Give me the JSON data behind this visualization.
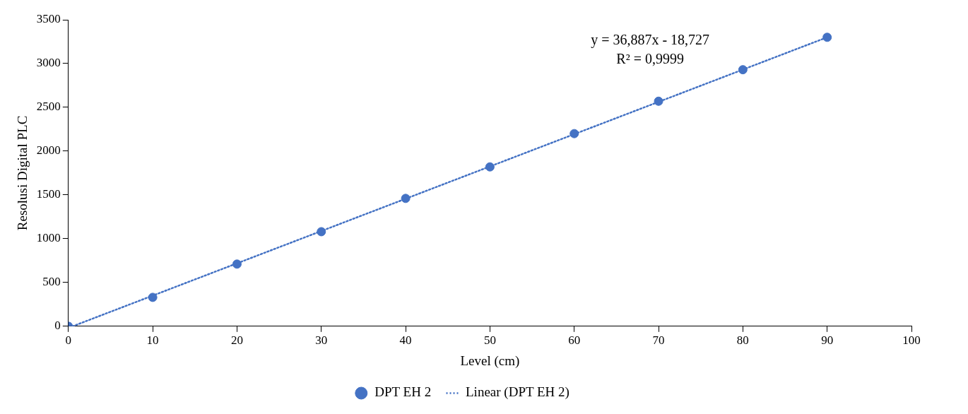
{
  "chart_data": {
    "type": "scatter",
    "xlabel": "Level (cm)",
    "ylabel": "Resolusi Digital PLC",
    "x": [
      0,
      10,
      20,
      30,
      40,
      50,
      60,
      70,
      80,
      90
    ],
    "series": [
      {
        "name": "DPT EH 2",
        "color": "#4472c4",
        "values": [
          0,
          330,
          710,
          1080,
          1460,
          1820,
          2200,
          2570,
          2930,
          3300
        ],
        "marker": "circle"
      },
      {
        "name": "Linear (DPT EH 2)",
        "type": "line",
        "color": "#4472c4",
        "x": [
          0.51,
          90
        ],
        "values": [
          0,
          3300
        ],
        "line_style": "dotted",
        "marker": "none"
      }
    ],
    "annotations": [
      "y = 36,887x - 18,727",
      "R² = 0,9999"
    ],
    "xlim": [
      0,
      100
    ],
    "xticks": [
      0,
      10,
      20,
      30,
      40,
      50,
      60,
      70,
      80,
      90,
      100
    ],
    "ylim": [
      0,
      3500
    ],
    "yticks": [
      0,
      500,
      1000,
      1500,
      2000,
      2500,
      3000,
      3500
    ],
    "grid": false,
    "legend": "bottom"
  }
}
